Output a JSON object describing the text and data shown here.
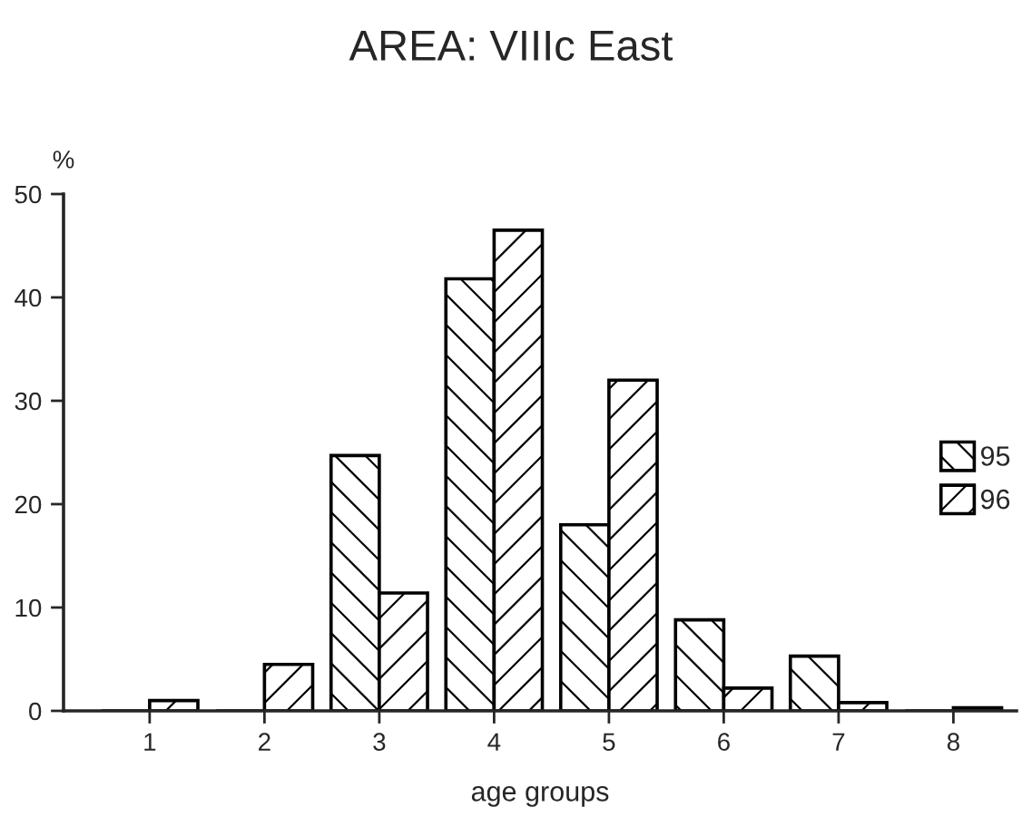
{
  "chart_data": {
    "type": "bar",
    "title": "AREA: VIIIc East",
    "xlabel": "age groups",
    "ylabel": "%",
    "categories": [
      "1",
      "2",
      "3",
      "4",
      "5",
      "6",
      "7",
      "8"
    ],
    "series": [
      {
        "name": "95",
        "color": "#000000",
        "values": [
          0,
          0,
          24.7,
          41.8,
          18,
          8.8,
          5.3,
          0
        ]
      },
      {
        "name": "96",
        "color": "#000000",
        "values": [
          1.0,
          4.5,
          11.4,
          46.5,
          32,
          2.2,
          0.8,
          0.3
        ]
      }
    ],
    "ylim": [
      0,
      50
    ],
    "yticks": [
      0,
      10,
      20,
      30,
      40,
      50
    ],
    "grid": false,
    "legend": "right"
  }
}
